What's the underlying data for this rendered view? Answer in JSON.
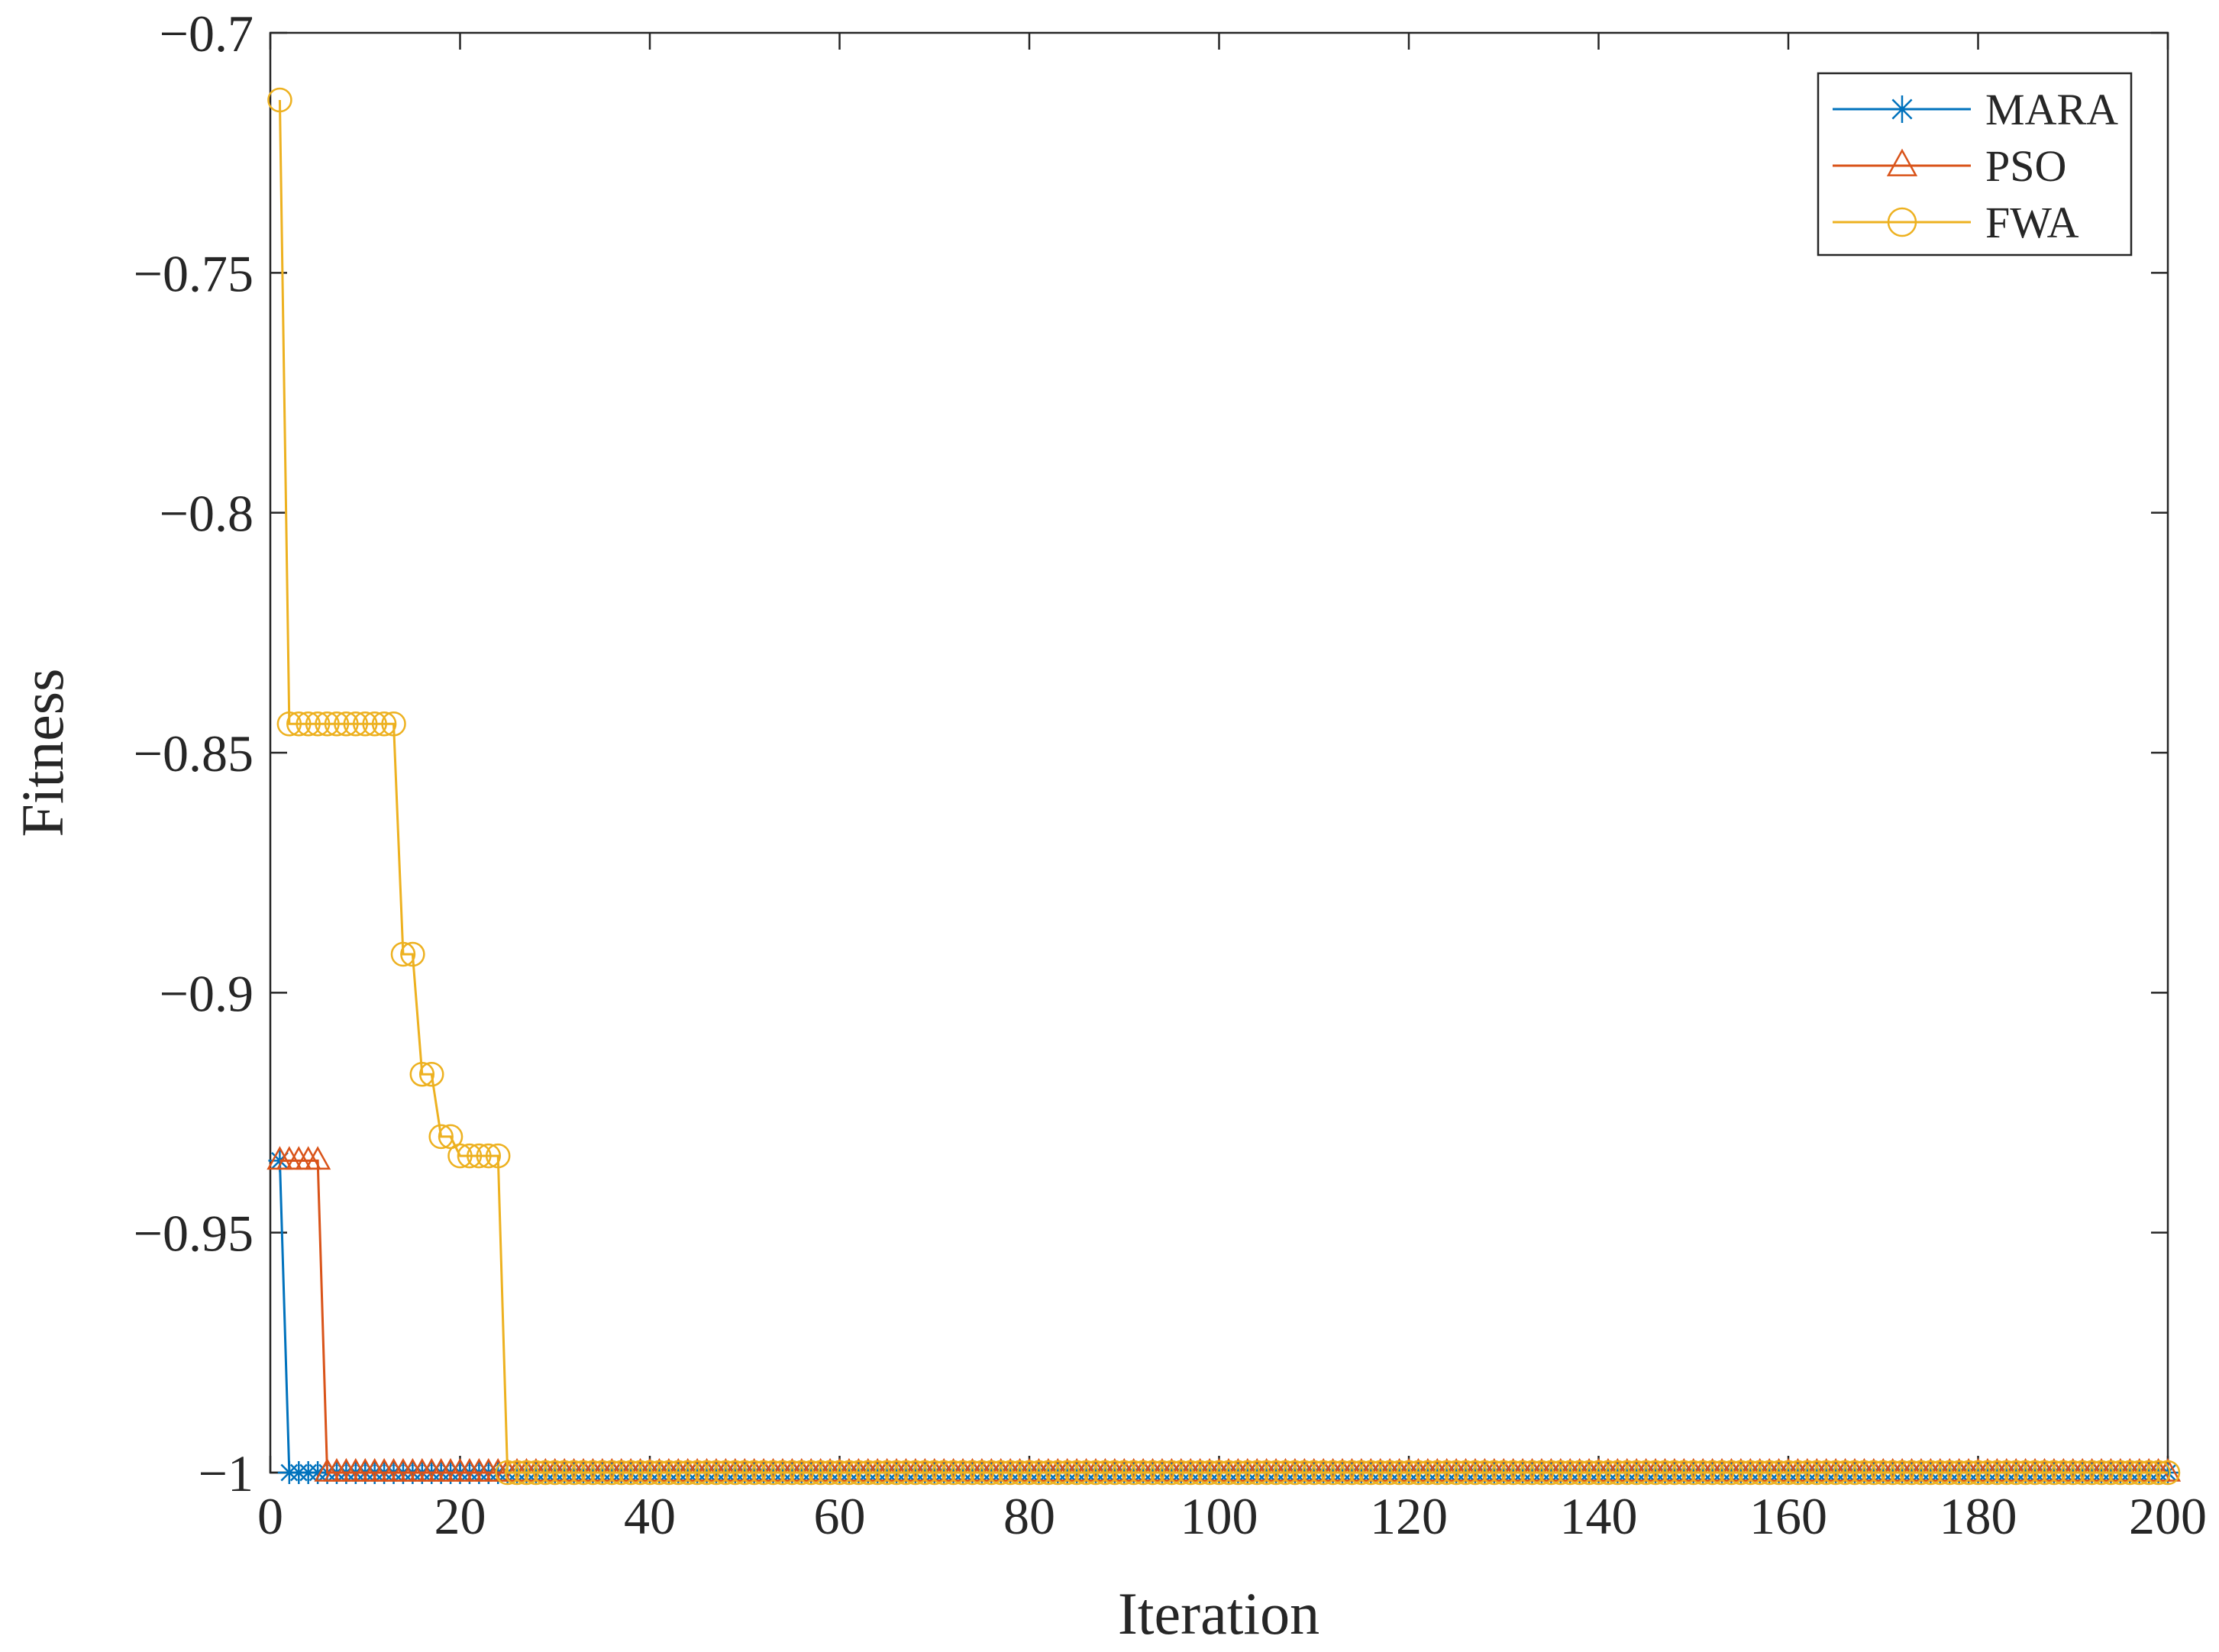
{
  "chart_data": {
    "type": "line",
    "xlabel": "Iteration",
    "ylabel": "Fitness",
    "xlim": [
      0,
      200
    ],
    "xticks": [
      0,
      20,
      40,
      60,
      80,
      100,
      120,
      140,
      160,
      180,
      200
    ],
    "ylim": [
      -1,
      -0.7
    ],
    "yticks": [
      {
        "value": -1,
        "label": "−1"
      },
      {
        "value": -0.95,
        "label": "−0.95"
      },
      {
        "value": -0.9,
        "label": "−0.9"
      },
      {
        "value": -0.85,
        "label": "−0.85"
      },
      {
        "value": -0.8,
        "label": "−0.8"
      },
      {
        "value": -0.75,
        "label": "−0.75"
      },
      {
        "value": -0.7,
        "label": "−0.7"
      }
    ],
    "grid": false,
    "legend": "northeast",
    "x": [
      1,
      2,
      3,
      4,
      5,
      6,
      7,
      8,
      9,
      10,
      11,
      12,
      13,
      14,
      15,
      16,
      17,
      18,
      19,
      20,
      21,
      22,
      23,
      24,
      25,
      26,
      27,
      28,
      29,
      30,
      31,
      32,
      33,
      34,
      35,
      36,
      37,
      38,
      39,
      40,
      41,
      42,
      43,
      44,
      45,
      46,
      47,
      48,
      49,
      50,
      51,
      52,
      53,
      54,
      55,
      56,
      57,
      58,
      59,
      60,
      61,
      62,
      63,
      64,
      65,
      66,
      67,
      68,
      69,
      70,
      71,
      72,
      73,
      74,
      75,
      76,
      77,
      78,
      79,
      80,
      81,
      82,
      83,
      84,
      85,
      86,
      87,
      88,
      89,
      90,
      91,
      92,
      93,
      94,
      95,
      96,
      97,
      98,
      99,
      100,
      101,
      102,
      103,
      104,
      105,
      106,
      107,
      108,
      109,
      110,
      111,
      112,
      113,
      114,
      115,
      116,
      117,
      118,
      119,
      120,
      121,
      122,
      123,
      124,
      125,
      126,
      127,
      128,
      129,
      130,
      131,
      132,
      133,
      134,
      135,
      136,
      137,
      138,
      139,
      140,
      141,
      142,
      143,
      144,
      145,
      146,
      147,
      148,
      149,
      150,
      151,
      152,
      153,
      154,
      155,
      156,
      157,
      158,
      159,
      160,
      161,
      162,
      163,
      164,
      165,
      166,
      167,
      168,
      169,
      170,
      171,
      172,
      173,
      174,
      175,
      176,
      177,
      178,
      179,
      180,
      181,
      182,
      183,
      184,
      185,
      186,
      187,
      188,
      189,
      190,
      191,
      192,
      193,
      194,
      195,
      196,
      197,
      198,
      199,
      200
    ],
    "series": [
      {
        "name": "MARA",
        "color": "#0072bd",
        "marker": "star",
        "values": [
          -0.935,
          -1,
          -1,
          -1,
          -1,
          -1,
          -1,
          -1,
          -1,
          -1,
          -1,
          -1,
          -1,
          -1,
          -1,
          -1,
          -1,
          -1,
          -1,
          -1,
          -1,
          -1,
          -1,
          -1,
          -1,
          -1,
          -1,
          -1,
          -1,
          -1,
          -1,
          -1,
          -1,
          -1,
          -1,
          -1,
          -1,
          -1,
          -1,
          -1,
          -1,
          -1,
          -1,
          -1,
          -1,
          -1,
          -1,
          -1,
          -1,
          -1,
          -1,
          -1,
          -1,
          -1,
          -1,
          -1,
          -1,
          -1,
          -1,
          -1,
          -1,
          -1,
          -1,
          -1,
          -1,
          -1,
          -1,
          -1,
          -1,
          -1,
          -1,
          -1,
          -1,
          -1,
          -1,
          -1,
          -1,
          -1,
          -1,
          -1,
          -1,
          -1,
          -1,
          -1,
          -1,
          -1,
          -1,
          -1,
          -1,
          -1,
          -1,
          -1,
          -1,
          -1,
          -1,
          -1,
          -1,
          -1,
          -1,
          -1,
          -1,
          -1,
          -1,
          -1,
          -1,
          -1,
          -1,
          -1,
          -1,
          -1,
          -1,
          -1,
          -1,
          -1,
          -1,
          -1,
          -1,
          -1,
          -1,
          -1,
          -1,
          -1,
          -1,
          -1,
          -1,
          -1,
          -1,
          -1,
          -1,
          -1,
          -1,
          -1,
          -1,
          -1,
          -1,
          -1,
          -1,
          -1,
          -1,
          -1,
          -1,
          -1,
          -1,
          -1,
          -1,
          -1,
          -1,
          -1,
          -1,
          -1,
          -1,
          -1,
          -1,
          -1,
          -1,
          -1,
          -1,
          -1,
          -1,
          -1,
          -1,
          -1,
          -1,
          -1,
          -1,
          -1,
          -1,
          -1,
          -1,
          -1,
          -1,
          -1,
          -1,
          -1,
          -1,
          -1,
          -1,
          -1,
          -1,
          -1,
          -1,
          -1,
          -1,
          -1,
          -1,
          -1,
          -1,
          -1,
          -1,
          -1,
          -1,
          -1,
          -1,
          -1,
          -1,
          -1,
          -1,
          -1,
          -1,
          -1
        ]
      },
      {
        "name": "PSO",
        "color": "#d95319",
        "marker": "triangle",
        "values": [
          -0.935,
          -0.935,
          -0.935,
          -0.935,
          -0.935,
          -1,
          -1,
          -1,
          -1,
          -1,
          -1,
          -1,
          -1,
          -1,
          -1,
          -1,
          -1,
          -1,
          -1,
          -1,
          -1,
          -1,
          -1,
          -1,
          -1,
          -1,
          -1,
          -1,
          -1,
          -1,
          -1,
          -1,
          -1,
          -1,
          -1,
          -1,
          -1,
          -1,
          -1,
          -1,
          -1,
          -1,
          -1,
          -1,
          -1,
          -1,
          -1,
          -1,
          -1,
          -1,
          -1,
          -1,
          -1,
          -1,
          -1,
          -1,
          -1,
          -1,
          -1,
          -1,
          -1,
          -1,
          -1,
          -1,
          -1,
          -1,
          -1,
          -1,
          -1,
          -1,
          -1,
          -1,
          -1,
          -1,
          -1,
          -1,
          -1,
          -1,
          -1,
          -1,
          -1,
          -1,
          -1,
          -1,
          -1,
          -1,
          -1,
          -1,
          -1,
          -1,
          -1,
          -1,
          -1,
          -1,
          -1,
          -1,
          -1,
          -1,
          -1,
          -1,
          -1,
          -1,
          -1,
          -1,
          -1,
          -1,
          -1,
          -1,
          -1,
          -1,
          -1,
          -1,
          -1,
          -1,
          -1,
          -1,
          -1,
          -1,
          -1,
          -1,
          -1,
          -1,
          -1,
          -1,
          -1,
          -1,
          -1,
          -1,
          -1,
          -1,
          -1,
          -1,
          -1,
          -1,
          -1,
          -1,
          -1,
          -1,
          -1,
          -1,
          -1,
          -1,
          -1,
          -1,
          -1,
          -1,
          -1,
          -1,
          -1,
          -1,
          -1,
          -1,
          -1,
          -1,
          -1,
          -1,
          -1,
          -1,
          -1,
          -1,
          -1,
          -1,
          -1,
          -1,
          -1,
          -1,
          -1,
          -1,
          -1,
          -1,
          -1,
          -1,
          -1,
          -1,
          -1,
          -1,
          -1,
          -1,
          -1,
          -1,
          -1,
          -1,
          -1,
          -1,
          -1,
          -1,
          -1,
          -1,
          -1,
          -1,
          -1,
          -1,
          -1,
          -1,
          -1,
          -1,
          -1,
          -1,
          -1,
          -1
        ]
      },
      {
        "name": "FWA",
        "color": "#edb120",
        "marker": "circle",
        "values": [
          -0.714,
          -0.844,
          -0.844,
          -0.844,
          -0.844,
          -0.844,
          -0.844,
          -0.844,
          -0.844,
          -0.844,
          -0.844,
          -0.844,
          -0.844,
          -0.892,
          -0.892,
          -0.917,
          -0.917,
          -0.93,
          -0.93,
          -0.934,
          -0.934,
          -0.934,
          -0.934,
          -0.934,
          -1,
          -1,
          -1,
          -1,
          -1,
          -1,
          -1,
          -1,
          -1,
          -1,
          -1,
          -1,
          -1,
          -1,
          -1,
          -1,
          -1,
          -1,
          -1,
          -1,
          -1,
          -1,
          -1,
          -1,
          -1,
          -1,
          -1,
          -1,
          -1,
          -1,
          -1,
          -1,
          -1,
          -1,
          -1,
          -1,
          -1,
          -1,
          -1,
          -1,
          -1,
          -1,
          -1,
          -1,
          -1,
          -1,
          -1,
          -1,
          -1,
          -1,
          -1,
          -1,
          -1,
          -1,
          -1,
          -1,
          -1,
          -1,
          -1,
          -1,
          -1,
          -1,
          -1,
          -1,
          -1,
          -1,
          -1,
          -1,
          -1,
          -1,
          -1,
          -1,
          -1,
          -1,
          -1,
          -1,
          -1,
          -1,
          -1,
          -1,
          -1,
          -1,
          -1,
          -1,
          -1,
          -1,
          -1,
          -1,
          -1,
          -1,
          -1,
          -1,
          -1,
          -1,
          -1,
          -1,
          -1,
          -1,
          -1,
          -1,
          -1,
          -1,
          -1,
          -1,
          -1,
          -1,
          -1,
          -1,
          -1,
          -1,
          -1,
          -1,
          -1,
          -1,
          -1,
          -1,
          -1,
          -1,
          -1,
          -1,
          -1,
          -1,
          -1,
          -1,
          -1,
          -1,
          -1,
          -1,
          -1,
          -1,
          -1,
          -1,
          -1,
          -1,
          -1,
          -1,
          -1,
          -1,
          -1,
          -1,
          -1,
          -1,
          -1,
          -1,
          -1,
          -1,
          -1,
          -1,
          -1,
          -1,
          -1,
          -1,
          -1,
          -1,
          -1,
          -1,
          -1,
          -1,
          -1,
          -1,
          -1,
          -1,
          -1,
          -1,
          -1,
          -1,
          -1,
          -1,
          -1,
          -1,
          -1,
          -1,
          -1,
          -1,
          -1,
          -1
        ]
      }
    ]
  }
}
